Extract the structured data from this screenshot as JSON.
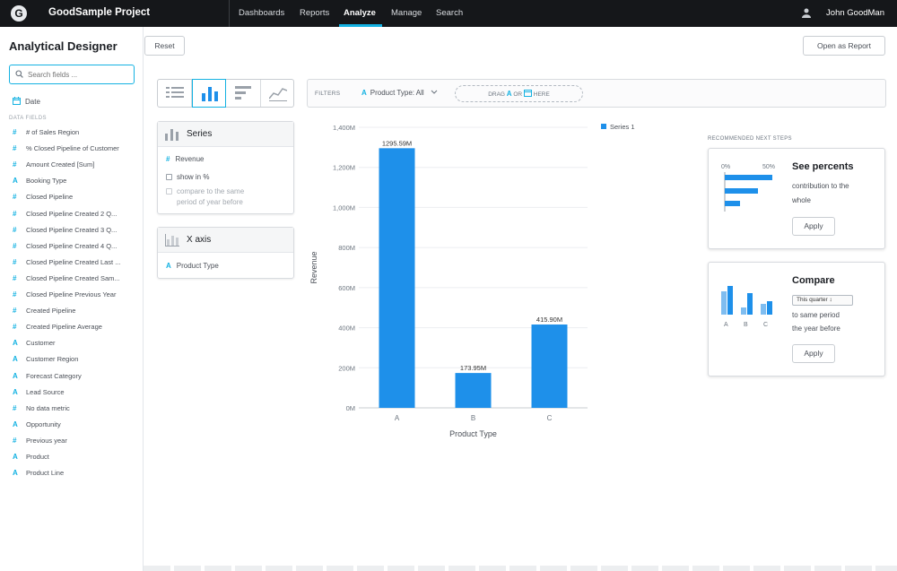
{
  "topbar": {
    "logo": "G",
    "project": "GoodSample Project",
    "nav": [
      "Dashboards",
      "Reports",
      "Analyze",
      "Manage",
      "Search"
    ],
    "active_nav": "Analyze",
    "user": "John GoodMan"
  },
  "sidebar": {
    "title": "Analytical Designer",
    "search_placeholder": "Search fields ...",
    "date_label": "Date",
    "section_label": "DATA FIELDS",
    "fields": [
      {
        "type": "metric",
        "icon": "#",
        "label": "# of Sales Region"
      },
      {
        "type": "metric",
        "icon": "#",
        "label": "% Closed Pipeline of Customer"
      },
      {
        "type": "metric",
        "icon": "#",
        "label": "Amount Created [Sum]"
      },
      {
        "type": "attribute",
        "icon": "A",
        "label": "Booking Type"
      },
      {
        "type": "metric",
        "icon": "#",
        "label": "Closed Pipeline"
      },
      {
        "type": "metric",
        "icon": "#",
        "label": "Closed Pipeline Created 2 Q..."
      },
      {
        "type": "metric",
        "icon": "#",
        "label": "Closed Pipeline Created 3 Q..."
      },
      {
        "type": "metric",
        "icon": "#",
        "label": "Closed Pipeline Created 4 Q..."
      },
      {
        "type": "metric",
        "icon": "#",
        "label": "Closed Pipeline Created Last ..."
      },
      {
        "type": "metric",
        "icon": "#",
        "label": "Closed Pipeline Created Sam..."
      },
      {
        "type": "metric",
        "icon": "#",
        "label": "Closed Pipeline Previous Year"
      },
      {
        "type": "metric",
        "icon": "#",
        "label": "Created Pipeline"
      },
      {
        "type": "metric",
        "icon": "#",
        "label": "Created Pipeline Average"
      },
      {
        "type": "attribute",
        "icon": "A",
        "label": "Customer"
      },
      {
        "type": "attribute",
        "icon": "A",
        "label": "Customer Region"
      },
      {
        "type": "attribute",
        "icon": "A",
        "label": "Forecast Category"
      },
      {
        "type": "attribute",
        "icon": "A",
        "label": "Lead Source"
      },
      {
        "type": "metric",
        "icon": "#",
        "label": "No data metric"
      },
      {
        "type": "attribute",
        "icon": "A",
        "label": "Opportunity"
      },
      {
        "type": "metric",
        "icon": "#",
        "label": "Previous year"
      },
      {
        "type": "attribute",
        "icon": "A",
        "label": "Product"
      },
      {
        "type": "attribute",
        "icon": "A",
        "label": "Product Line"
      }
    ]
  },
  "toolbar": {
    "reset_label": "Reset",
    "open_report_label": "Open as Report"
  },
  "buckets": {
    "series_title": "Series",
    "series_item": "Revenue",
    "series_item_icon": "#",
    "show_in_pct": "show in %",
    "compare_line1": "compare to the same",
    "compare_line2": "period of year before",
    "xaxis_title": "X axis",
    "xaxis_item": "Product Type",
    "xaxis_item_icon": "A"
  },
  "filters": {
    "label": "FILTERS",
    "filter_icon": "A",
    "filter_text": "Product Type: All",
    "drop_drag": "DRAG",
    "drop_or": "OR",
    "drop_here": "HERE",
    "drop_attr_icon": "A"
  },
  "chart_data": {
    "type": "bar",
    "categories": [
      "A",
      "B",
      "C"
    ],
    "series": [
      {
        "name": "Series 1",
        "values": [
          1295.59,
          173.95,
          415.9
        ]
      }
    ],
    "value_labels": [
      "1295.59M",
      "173.95M",
      "415.90M"
    ],
    "title": "",
    "xlabel": "Product Type",
    "ylabel": "Revenue",
    "ylim": [
      0,
      1400
    ],
    "yticks": [
      0,
      200,
      400,
      600,
      800,
      1000,
      1200,
      1400
    ],
    "ytick_labels": [
      "0M",
      "200M",
      "400M",
      "600M",
      "800M",
      "1,000M",
      "1,200M",
      "1,400M"
    ],
    "grid": true,
    "legend": "top-right",
    "color": "#1e90ea"
  },
  "recommended": {
    "label": "RECOMMENDED NEXT STEPS",
    "percents": {
      "title": "See percents",
      "text1": "contribution to the",
      "text2": "whole",
      "apply": "Apply",
      "axis_min": "0%",
      "axis_max": "50%"
    },
    "compare": {
      "title": "Compare",
      "select": "This quarter",
      "text1": "to same period",
      "text2": "the year before",
      "apply": "Apply",
      "bar_labels": [
        "A",
        "B",
        "C"
      ]
    }
  }
}
